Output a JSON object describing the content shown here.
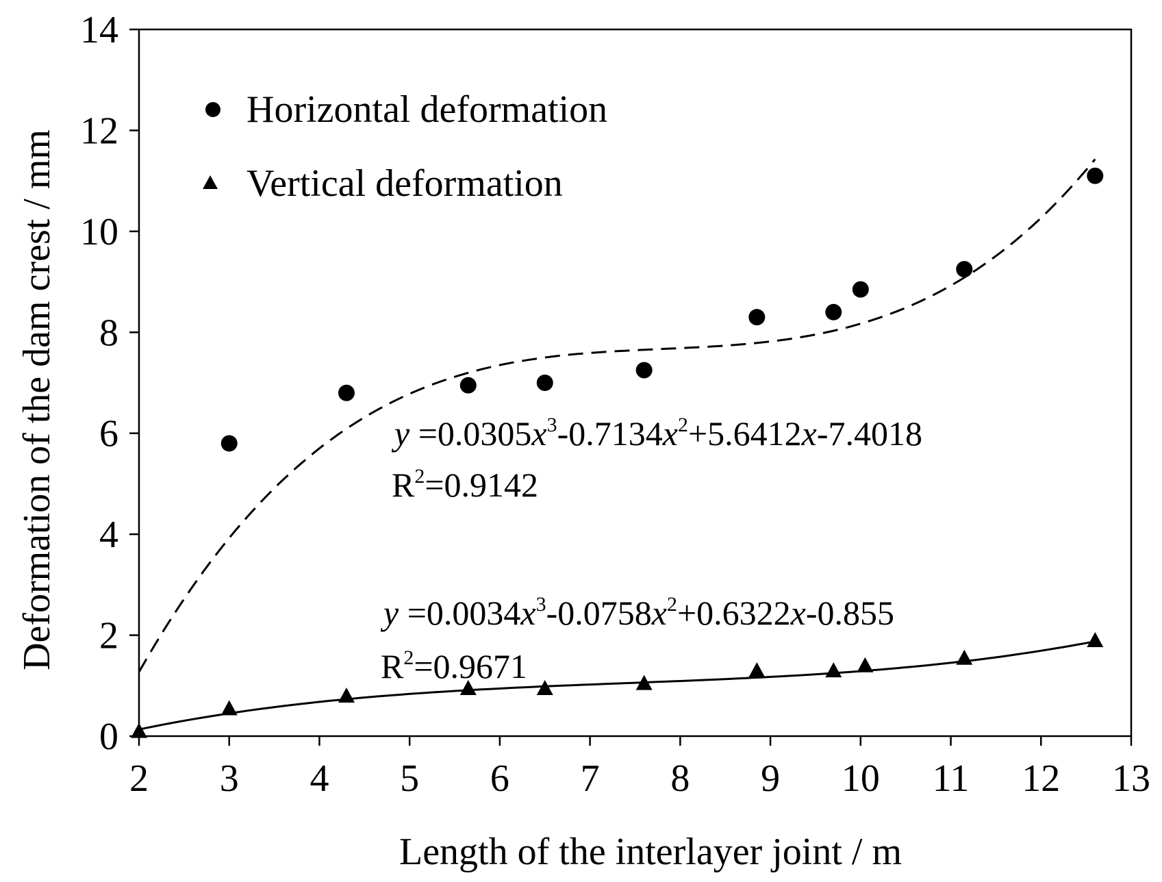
{
  "chart_data": {
    "type": "scatter",
    "title": "",
    "xlabel": "Length of the interlayer joint / m",
    "ylabel": "Deformation of the dam crest / mm",
    "xlim": [
      2,
      13
    ],
    "ylim": [
      0,
      14
    ],
    "xticks": [
      "2",
      "3",
      "4",
      "5",
      "6",
      "7",
      "8",
      "9",
      "10",
      "11",
      "12",
      "13"
    ],
    "yticks": [
      "0",
      "2",
      "4",
      "6",
      "8",
      "10",
      "12",
      "14"
    ],
    "grid": false,
    "legend_position": "top-left",
    "series": [
      {
        "name": "Horizontal deformation",
        "marker": "circle",
        "x": [
          3.0,
          4.3,
          5.65,
          6.5,
          7.6,
          8.85,
          9.7,
          10.0,
          11.15,
          12.6
        ],
        "y": [
          5.8,
          6.8,
          6.95,
          7.0,
          7.25,
          8.3,
          8.4,
          8.85,
          9.25,
          11.1
        ],
        "fit": {
          "style": "dashed",
          "coefficients": [
            0.0305,
            -0.7134,
            5.6412,
            -7.4018
          ],
          "equation": "=0.0305x3-0.7134x2+5.6412x-7.4018",
          "r2": "=0.9142"
        }
      },
      {
        "name": "Vertical deformation",
        "marker": "triangle",
        "x": [
          2.0,
          3.0,
          4.3,
          5.65,
          6.5,
          7.6,
          8.85,
          9.7,
          10.05,
          11.15,
          12.6
        ],
        "y": [
          0.1,
          0.55,
          0.8,
          0.95,
          0.95,
          1.05,
          1.3,
          1.3,
          1.4,
          1.55,
          1.9
        ],
        "fit": {
          "style": "solid",
          "coefficients": [
            0.0034,
            -0.0758,
            0.6322,
            -0.855
          ],
          "equation": "=0.0034x3-0.0758x2+0.6322x-0.855",
          "r2": "=0.9671"
        }
      }
    ],
    "annotations": [
      {
        "series": "Horizontal deformation",
        "text": {
          "y": "y",
          "c1": " =0.0305",
          "x1": "x",
          "e1": "3",
          "c2": "-0.7134",
          "x2": "x",
          "e2": "2",
          "c3": "+5.6412",
          "x3": "x",
          "c4": "-7.4018",
          "r": "R",
          "r_exp": "2",
          "r_val": "=0.9142"
        }
      },
      {
        "series": "Vertical deformation",
        "text": {
          "y": "y",
          "c1": " =0.0034",
          "x1": "x",
          "e1": "3",
          "c2": "-0.0758",
          "x2": "x",
          "e2": "2",
          "c3": "+0.6322",
          "x3": "x",
          "c4": "-0.855",
          "r": "R",
          "r_exp": "2",
          "r_val": "=0.9671"
        }
      }
    ]
  }
}
